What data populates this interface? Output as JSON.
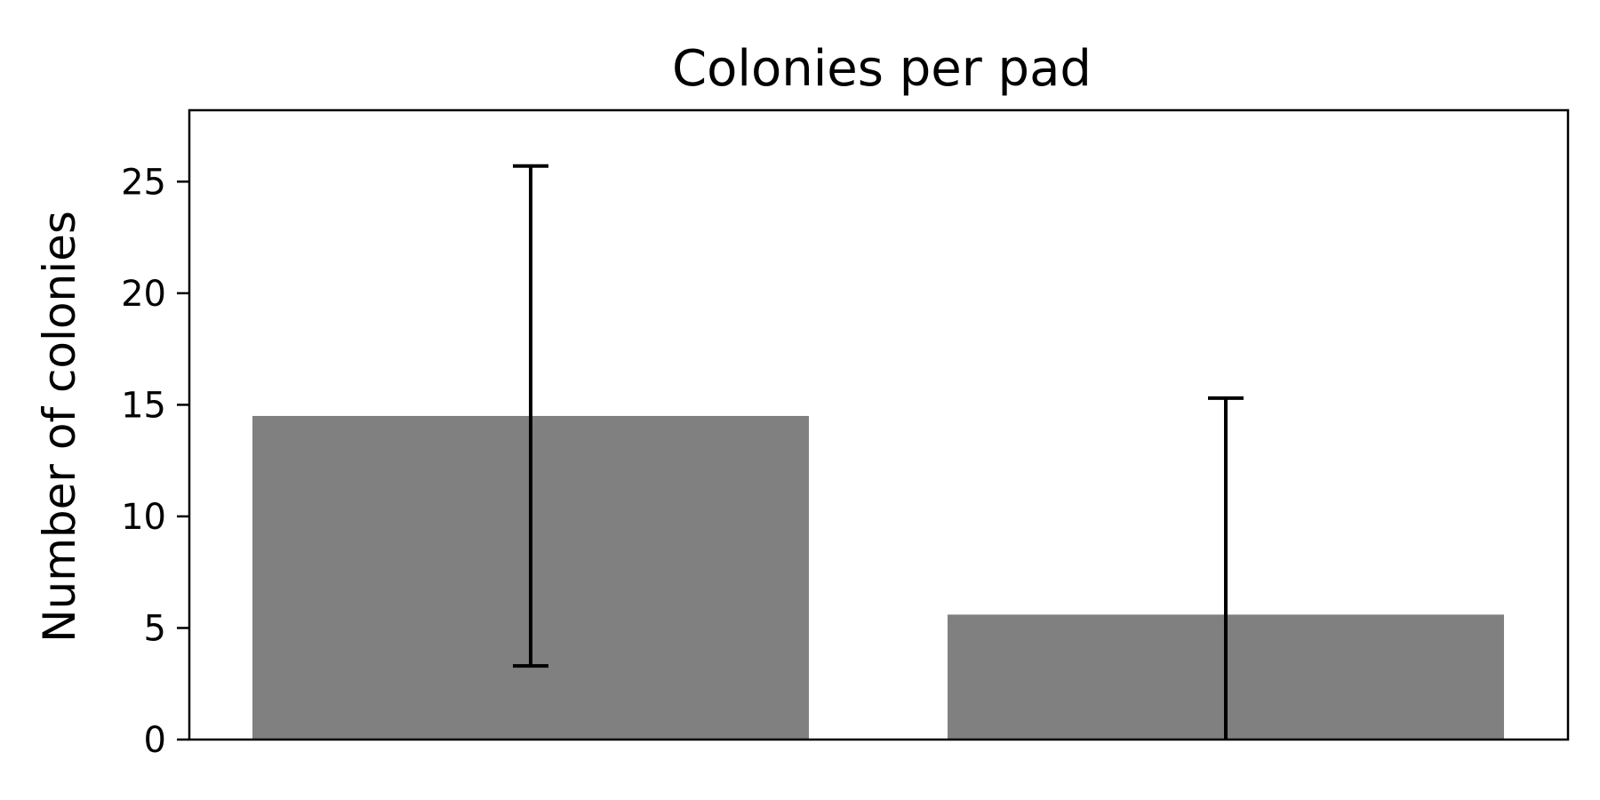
{
  "chart_data": {
    "type": "bar",
    "title": "Colonies per pad",
    "xlabel": "",
    "ylabel": "Number of colonies",
    "categories": [
      "",
      ""
    ],
    "values": [
      14.5,
      5.6
    ],
    "error_low": [
      3.3,
      0
    ],
    "error_high": [
      25.7,
      15.3
    ],
    "ylim": [
      0,
      28.2
    ],
    "yticks": [
      0,
      5,
      10,
      15,
      20,
      25
    ],
    "ytick_labels": [
      "0",
      "5",
      "10",
      "15",
      "20",
      "25"
    ],
    "grid": false,
    "legend": "none",
    "bar_color": "#808080",
    "error_color": "#000000"
  }
}
